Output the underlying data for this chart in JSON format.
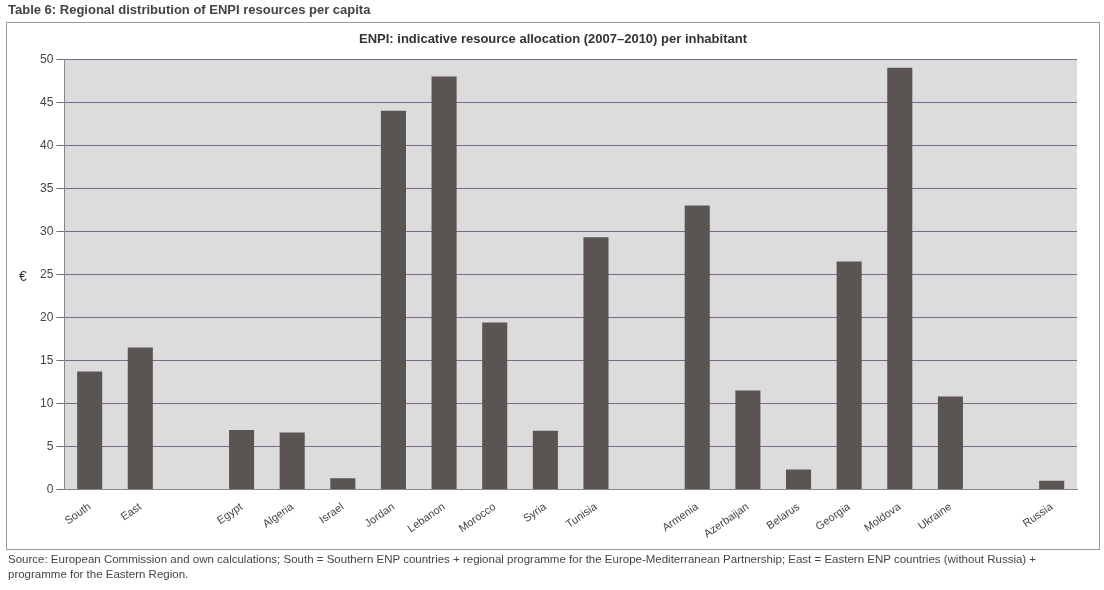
{
  "chart_data": {
    "type": "bar",
    "title": "Table 6: Regional distribution of ENPI resources per capita",
    "subtitle": "ENPI: indicative resource allocation (2007–2010) per inhabitant",
    "ylabel": "€",
    "categories": [
      "South",
      "East",
      null,
      "Egypt",
      "Algeria",
      "Israel",
      "Jordan",
      "Lebanon",
      "Morocco",
      "Syria",
      "Tunisia",
      null,
      "Armenia",
      "Azerbaijan",
      "Belarus",
      "Georgia",
      "Moldova",
      "Ukraine",
      null,
      "Russia"
    ],
    "values": [
      13.7,
      16.5,
      null,
      6.9,
      6.6,
      1.3,
      44,
      48,
      19.4,
      6.8,
      29.3,
      null,
      33,
      11.5,
      2.3,
      26.5,
      49,
      10.8,
      null,
      1.0
    ],
    "color": "#5a5552",
    "ylim": [
      0,
      50
    ],
    "yticks": [
      0,
      5,
      10,
      15,
      20,
      25,
      30,
      35,
      40,
      45,
      50
    ],
    "grid": "y",
    "legend": false,
    "annotations": [
      "Source: European Commission and own calculations; South = Southern ENP countries + regional programme for the Europe-Mediterranean Partnership; East = Eastern ENP countries (without Russia) + programme for the Eastern Region."
    ]
  }
}
